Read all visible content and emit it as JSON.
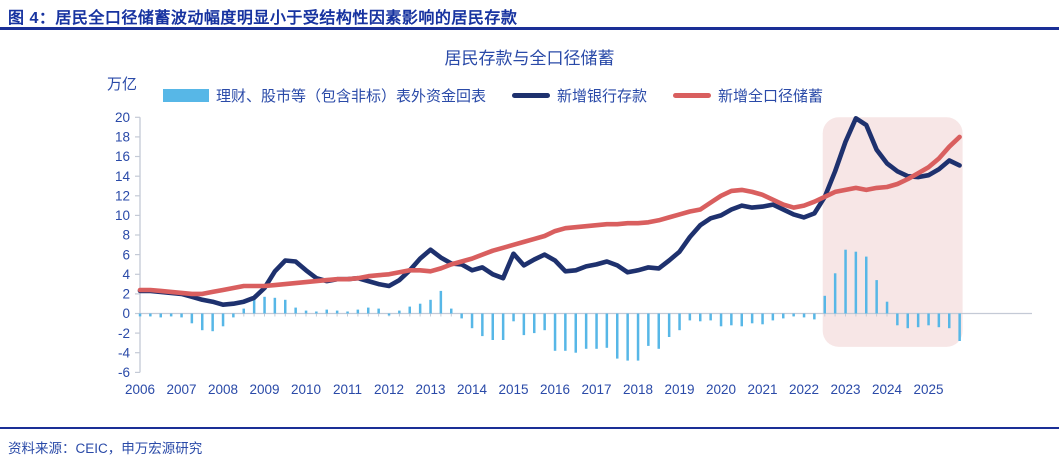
{
  "header": {
    "title": "图 4：居民全口径储蓄波动幅度明显小于受结构性因素影响的居民存款"
  },
  "footer": {
    "source": "资料来源：CEIC，申万宏源研究"
  },
  "chart_data": {
    "type": "mixed",
    "title": "居民存款与全口径储蓄",
    "unit_label": "万亿",
    "x_start": 2006,
    "x_step": 0.25,
    "x_ticks": [
      "2006",
      "2007",
      "2008",
      "2009",
      "2010",
      "2011",
      "2012",
      "2013",
      "2014",
      "2015",
      "2016",
      "2017",
      "2018",
      "2019",
      "2020",
      "2021",
      "2022",
      "2023",
      "2024",
      "2025"
    ],
    "y_ticks": [
      20,
      18,
      16,
      14,
      12,
      10,
      8,
      6,
      4,
      2,
      0,
      -2,
      -4,
      -6
    ],
    "ylim": [
      -6,
      20
    ],
    "legend_position": "top",
    "grid": false,
    "series": [
      {
        "name": "理财、股市等（包含非标）表外资金回表",
        "type": "bar",
        "color": "#57b7e7",
        "values": [
          -0.3,
          -0.3,
          -0.4,
          -0.3,
          -0.4,
          -1.0,
          -1.7,
          -1.8,
          -1.3,
          -0.4,
          0.5,
          1.5,
          1.7,
          1.6,
          1.4,
          0.6,
          0.3,
          0.2,
          0.4,
          0.3,
          0.2,
          0.4,
          0.6,
          0.5,
          -0.2,
          0.3,
          0.7,
          1.0,
          1.4,
          2.3,
          0.5,
          -0.5,
          -1.5,
          -2.3,
          -2.7,
          -2.7,
          -0.8,
          -2.2,
          -2.0,
          -1.7,
          -3.8,
          -3.8,
          -4.0,
          -3.6,
          -3.6,
          -3.5,
          -4.6,
          -4.8,
          -4.8,
          -3.3,
          -3.6,
          -2.4,
          -1.7,
          -0.7,
          -0.8,
          -0.7,
          -1.3,
          -1.2,
          -1.3,
          -1.0,
          -1.1,
          -0.7,
          -0.5,
          -0.3,
          -0.4,
          -0.6,
          1.8,
          4.1,
          6.5,
          6.3,
          5.8,
          3.4,
          1.2,
          -1.2,
          -1.5,
          -1.4,
          -1.2,
          -1.4,
          -1.5,
          -2.8
        ]
      },
      {
        "name": "新增银行存款",
        "type": "line",
        "color": "#1e316e",
        "values": [
          2.3,
          2.3,
          2.2,
          2.1,
          2.0,
          1.7,
          1.4,
          1.2,
          0.9,
          1.0,
          1.2,
          1.6,
          2.6,
          4.3,
          5.4,
          5.3,
          4.4,
          3.6,
          3.3,
          3.5,
          3.5,
          3.6,
          3.3,
          3.0,
          2.8,
          3.4,
          4.4,
          5.6,
          6.5,
          5.7,
          5.1,
          5.0,
          4.4,
          4.7,
          4.0,
          3.6,
          6.1,
          4.9,
          5.5,
          6.0,
          5.4,
          4.3,
          4.4,
          4.8,
          5.0,
          5.3,
          4.9,
          4.2,
          4.4,
          4.7,
          4.6,
          5.4,
          6.3,
          7.8,
          9.0,
          9.7,
          10.0,
          10.6,
          11.0,
          10.8,
          10.9,
          11.1,
          10.6,
          10.1,
          9.8,
          10.2,
          11.9,
          14.5,
          17.5,
          19.9,
          19.2,
          16.7,
          15.3,
          14.5,
          14.0,
          13.9,
          14.1,
          14.7,
          15.6,
          15.1
        ]
      },
      {
        "name": "新增全口径储蓄",
        "type": "line",
        "color": "#d95f5f",
        "values": [
          2.4,
          2.4,
          2.3,
          2.2,
          2.1,
          2.0,
          2.0,
          2.2,
          2.4,
          2.6,
          2.8,
          2.8,
          2.8,
          2.9,
          3.0,
          3.1,
          3.2,
          3.3,
          3.4,
          3.5,
          3.5,
          3.6,
          3.8,
          3.9,
          4.0,
          4.2,
          4.4,
          4.4,
          4.3,
          4.6,
          5.0,
          5.3,
          5.6,
          6.0,
          6.4,
          6.7,
          7.0,
          7.3,
          7.6,
          7.9,
          8.4,
          8.7,
          8.8,
          8.9,
          9.0,
          9.1,
          9.1,
          9.2,
          9.2,
          9.3,
          9.5,
          9.8,
          10.1,
          10.4,
          10.6,
          11.3,
          12.0,
          12.5,
          12.6,
          12.4,
          12.1,
          11.6,
          11.1,
          10.8,
          11.0,
          11.4,
          11.9,
          12.4,
          12.6,
          12.8,
          12.6,
          12.8,
          12.9,
          13.2,
          13.7,
          14.3,
          14.9,
          15.8,
          17.0,
          18.0
        ]
      }
    ],
    "highlight_region": {
      "x_start": 2022.45,
      "x_end": 2025.82,
      "y_top": 20.0,
      "y_bottom": -3.4,
      "color": "#f7e6e6"
    },
    "colors": {
      "axis": "#c4cad6",
      "tick_text": "#2a4aa8"
    }
  }
}
